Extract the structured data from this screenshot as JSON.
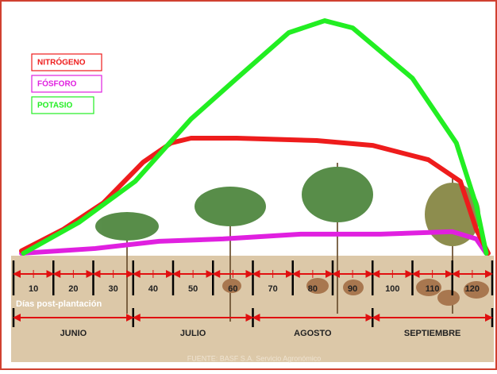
{
  "chart_data": {
    "type": "line",
    "x_label": "Días post-plantación",
    "source": "FUENTE: BASF S.A. Servicio Agronómico",
    "xlim": [
      5,
      125
    ],
    "ylim": [
      0,
      100
    ],
    "xticks": [
      10,
      20,
      30,
      40,
      50,
      60,
      70,
      80,
      90,
      100,
      110,
      120
    ],
    "months": [
      "JUNIO",
      "JULIO",
      "AGOSTO",
      "SEPTIEMBRE"
    ],
    "legend": "top-left",
    "series": [
      {
        "name": "NITRÓGENO",
        "color": "#ee1c1c",
        "x": [
          7,
          17.5,
          27.5,
          37.5,
          44.5,
          49.5,
          61,
          81,
          95,
          109,
          117,
          121,
          124
        ],
        "values": [
          2,
          11,
          22,
          39,
          47,
          49,
          49,
          48,
          46,
          40,
          31,
          11,
          1
        ]
      },
      {
        "name": "FÓSFORO",
        "color": "#e020e0",
        "x": [
          7,
          25.5,
          41.5,
          57.5,
          77,
          97,
          115,
          121,
          123.5
        ],
        "values": [
          1,
          3,
          6,
          7,
          9,
          9,
          10,
          7,
          1
        ]
      },
      {
        "name": "POTASIO",
        "color": "#22ee22",
        "x": [
          7.5,
          21.5,
          35.5,
          49.5,
          61,
          74,
          83,
          90,
          105,
          116,
          121,
          123.5
        ],
        "values": [
          1,
          14,
          31,
          57,
          74,
          93,
          98,
          95,
          74,
          47,
          21,
          1
        ]
      }
    ]
  }
}
